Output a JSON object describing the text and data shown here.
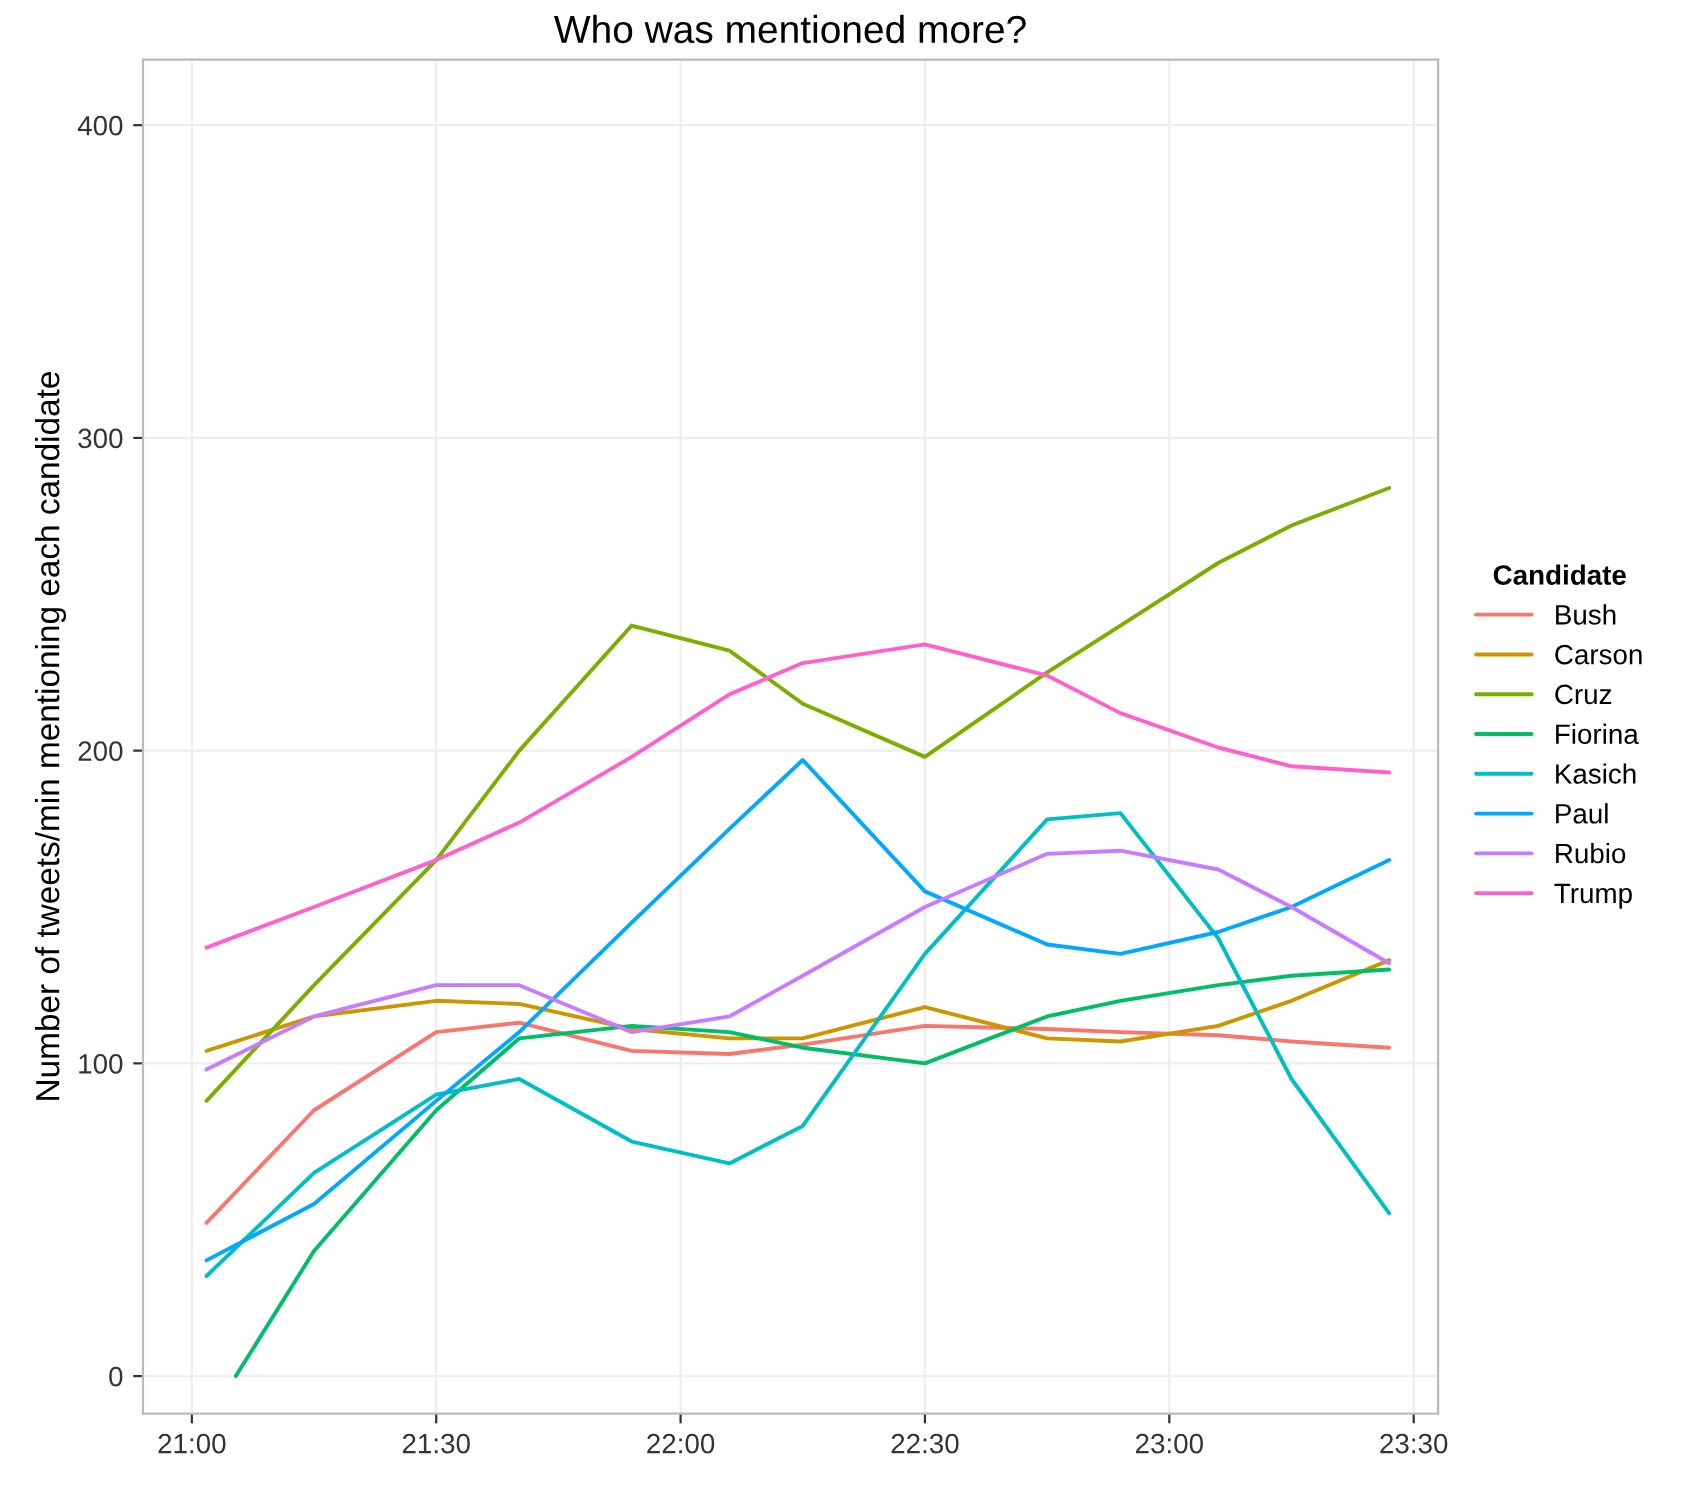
{
  "chart_data": {
    "type": "line",
    "title": "Who was mentioned more?",
    "ylabel": "Number of tweets/min mentioning each candidate",
    "legend_title": "Candidate",
    "legend": "right",
    "grid": true,
    "line_style": "solid",
    "marker": "none",
    "x": [
      21.03,
      21.25,
      21.5,
      21.67,
      21.9,
      22.1,
      22.25,
      22.5,
      22.75,
      22.9,
      23.1,
      23.25,
      23.45
    ],
    "xlim": [
      20.9,
      23.55
    ],
    "xticks": [
      {
        "value": 21,
        "label": "21:00"
      },
      {
        "value": 21.5,
        "label": "21:30"
      },
      {
        "value": 22,
        "label": "22:00"
      },
      {
        "value": 22.5,
        "label": "22:30"
      },
      {
        "value": 23,
        "label": "23:00"
      },
      {
        "value": 23.5,
        "label": "23:30"
      }
    ],
    "ylim": [
      -12,
      421
    ],
    "yticks": [
      0,
      100,
      200,
      300,
      400
    ],
    "series": [
      {
        "name": "Bush",
        "color": "#f8766d",
        "values": [
          49,
          85,
          110,
          113,
          104,
          103,
          106,
          112,
          111,
          110,
          109,
          107,
          105
        ]
      },
      {
        "name": "Carson",
        "color": "#cd9600",
        "values": [
          104,
          115,
          120,
          119,
          111,
          108,
          108,
          118,
          108,
          107,
          112,
          120,
          133
        ]
      },
      {
        "name": "Cruz",
        "color": "#7cae00",
        "values": [
          88,
          125,
          165,
          200,
          240,
          232,
          215,
          198,
          225,
          240,
          260,
          272,
          284
        ]
      },
      {
        "name": "Fiorina",
        "color": "#00be67",
        "x": [
          21.09,
          21.25,
          21.5,
          21.67,
          21.9,
          22.1,
          22.25,
          22.5,
          22.75,
          22.9,
          23.1,
          23.25,
          23.45
        ],
        "values": [
          0,
          40,
          85,
          108,
          112,
          110,
          105,
          100,
          115,
          120,
          125,
          128,
          130
        ]
      },
      {
        "name": "Kasich",
        "color": "#00bfc4",
        "values": [
          32,
          65,
          90,
          95,
          75,
          68,
          80,
          135,
          178,
          180,
          140,
          95,
          52
        ]
      },
      {
        "name": "Paul",
        "color": "#00a9ff",
        "values": [
          37,
          55,
          88,
          110,
          145,
          175,
          197,
          155,
          138,
          135,
          142,
          150,
          165
        ]
      },
      {
        "name": "Rubio",
        "color": "#c77cff",
        "values": [
          98,
          115,
          125,
          125,
          110,
          115,
          128,
          150,
          167,
          168,
          162,
          150,
          132
        ]
      },
      {
        "name": "Trump",
        "color": "#ff61cc",
        "values": [
          137,
          150,
          165,
          177,
          198,
          218,
          228,
          234,
          224,
          212,
          201,
          195,
          193
        ]
      }
    ]
  }
}
